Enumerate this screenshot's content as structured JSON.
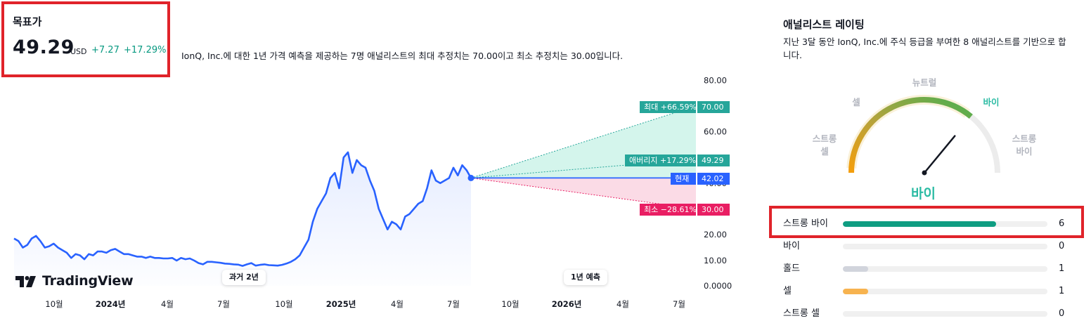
{
  "target": {
    "label": "목표가",
    "value": "49.29",
    "currency": "USD",
    "change": "+7.27",
    "change_pct": "+17.29%"
  },
  "summary": "IonQ, Inc.에 대한 1년 가격 예측을 제공하는 7명 애널리스트의 최대 추정치는 70.00이고 최소 추정치는 30.00입니다.",
  "chart": {
    "y_ticks": [
      "80.00",
      "60.00",
      "40.00",
      "20.00",
      "10.00",
      "0.0000"
    ],
    "x_labels": [
      {
        "text": "10월",
        "bold": false
      },
      {
        "text": "2024년",
        "bold": true
      },
      {
        "text": "4월",
        "bold": false
      },
      {
        "text": "7월",
        "bold": false
      },
      {
        "text": "10월",
        "bold": false
      },
      {
        "text": "2025년",
        "bold": true
      },
      {
        "text": "4월",
        "bold": false
      },
      {
        "text": "7월",
        "bold": false
      },
      {
        "text": "10월",
        "bold": false
      },
      {
        "text": "2026년",
        "bold": true
      },
      {
        "text": "4월",
        "bold": false
      },
      {
        "text": "7월",
        "bold": false
      }
    ],
    "pill_past": "과거 2년",
    "pill_forecast": "1년 예측",
    "logo_text": "TradingView",
    "tags": {
      "max_label": "최대 +66.59%",
      "max_value": "70.00",
      "avg_label": "애버리지 +17.29%",
      "avg_value": "49.29",
      "cur_label": "현재",
      "cur_value": "42.02",
      "min_label": "최소 −28.61%",
      "min_value": "30.00"
    },
    "colors": {
      "line": "#2962ff",
      "max": "#26a69a",
      "min": "#e91e63",
      "current": "#2962ff"
    }
  },
  "chart_data": {
    "type": "line",
    "title": "",
    "xlabel": "",
    "ylabel": "",
    "ylim": [
      0,
      80
    ],
    "series": [
      {
        "values": [
          18.5,
          17.5,
          15,
          16,
          18.5,
          19.5,
          17.5,
          15,
          15.5,
          16.5,
          15,
          14,
          13,
          11,
          12.5,
          12,
          10.5,
          12.5,
          12,
          13.5,
          13.5,
          13,
          14,
          14.5,
          13.5,
          12.5,
          12.5,
          12,
          11.5,
          11.5,
          11,
          11.5,
          11,
          11,
          10.8,
          10.8,
          11,
          10,
          11,
          10.5,
          10.8,
          10,
          9,
          8.5,
          9.5,
          9.5,
          9.3,
          9.1,
          8.8,
          8.7,
          8.5,
          8.4,
          7.9,
          8.5,
          9,
          8,
          8.3,
          8.5,
          8.2,
          8.1,
          8,
          8.3,
          8.8,
          9.5,
          10.5,
          12,
          15,
          18,
          25,
          30,
          33,
          36,
          42,
          44,
          38,
          50,
          52,
          44,
          49,
          47,
          46,
          41,
          37,
          30,
          26,
          22,
          25,
          24,
          22,
          27,
          28,
          30,
          32,
          33,
          38,
          45,
          41,
          40,
          41,
          42,
          46,
          43,
          47,
          45,
          42.02
        ]
      }
    ],
    "forecast": {
      "current": 42.02,
      "max": 70.0,
      "average": 49.29,
      "min": 30.0
    }
  },
  "ratings": {
    "title": "애널리스트 레이팅",
    "description": "지난 3달 동안 IonQ, Inc.에 주식 등급을 부여한 8 애널리스트를 기반으로 합니다.",
    "gauge_labels": {
      "strong_sell": "스트롱\n셀",
      "sell": "셀",
      "neutral": "뉴트럴",
      "buy": "바이",
      "strong_buy": "스트롱\n바이"
    },
    "result": "바이",
    "needle_level": 0.72,
    "rows": [
      {
        "label": "스트롱 바이",
        "count": "6",
        "fraction": 0.75,
        "color": "#0f9d82"
      },
      {
        "label": "바이",
        "count": "0",
        "fraction": 0,
        "color": "#2bbba3"
      },
      {
        "label": "홀드",
        "count": "1",
        "fraction": 0.125,
        "color": "#d1d4dc"
      },
      {
        "label": "셀",
        "count": "1",
        "fraction": 0.125,
        "color": "#f7b34f"
      },
      {
        "label": "스트롱 셀",
        "count": "0",
        "fraction": 0,
        "color": "#f59e0b"
      }
    ]
  }
}
